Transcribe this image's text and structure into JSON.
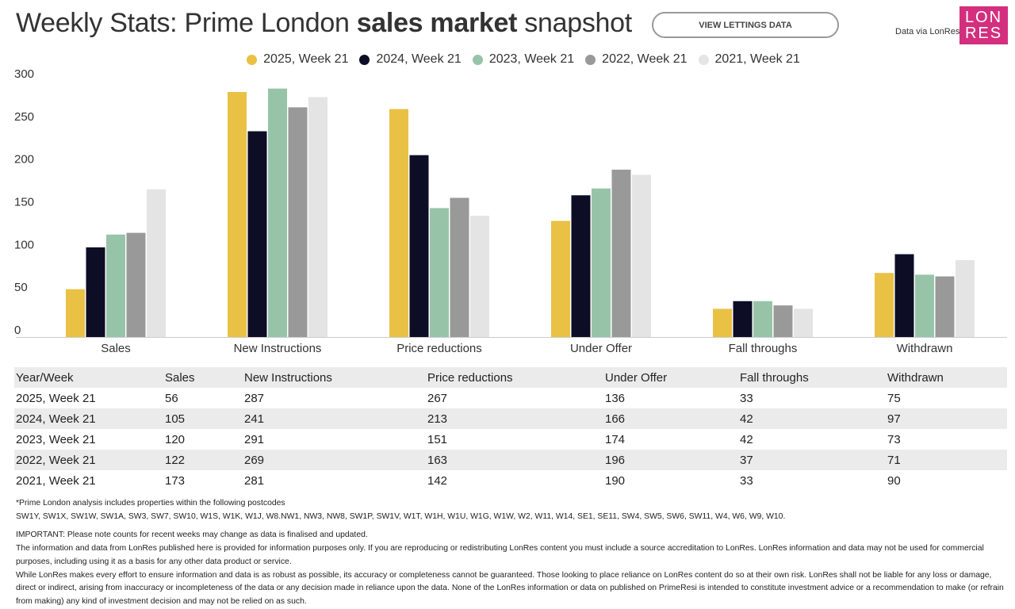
{
  "header": {
    "title_pre": "Weekly Stats: Prime London ",
    "title_bold": "sales market",
    "title_post": " snapshot",
    "button": "VIEW LETTINGS DATA",
    "data_via": "Data via LonRes",
    "logo_top": "LON",
    "logo_bottom": "RES"
  },
  "chart_data": {
    "type": "bar",
    "categories": [
      "Sales",
      "New Instructions",
      "Price reductions",
      "Under Offer",
      "Fall throughs",
      "Withdrawn"
    ],
    "yticks": [
      0,
      50,
      100,
      150,
      200,
      250,
      300
    ],
    "ylim": [
      0,
      300
    ],
    "grid": false,
    "legend_position": "top",
    "series": [
      {
        "name": "2025, Week 21",
        "color": "#e9c144",
        "values": [
          56,
          287,
          267,
          136,
          33,
          75
        ]
      },
      {
        "name": "2024, Week 21",
        "color": "#0d0d26",
        "values": [
          105,
          241,
          213,
          166,
          42,
          97
        ]
      },
      {
        "name": "2023, Week 21",
        "color": "#97c4a8",
        "values": [
          120,
          291,
          151,
          174,
          42,
          73
        ]
      },
      {
        "name": "2022, Week 21",
        "color": "#999999",
        "values": [
          122,
          269,
          163,
          196,
          37,
          71
        ]
      },
      {
        "name": "2021, Week 21",
        "color": "#e4e4e4",
        "values": [
          173,
          281,
          142,
          190,
          33,
          90
        ]
      }
    ]
  },
  "table": {
    "headers": [
      "Year/Week",
      "Sales",
      "New Instructions",
      "Price reductions",
      "Under Offer",
      "Fall throughs",
      "Withdrawn"
    ],
    "rows": [
      [
        "2025, Week 21",
        "56",
        "287",
        "267",
        "136",
        "33",
        "75"
      ],
      [
        "2024, Week 21",
        "105",
        "241",
        "213",
        "166",
        "42",
        "97"
      ],
      [
        "2023, Week 21",
        "120",
        "291",
        "151",
        "174",
        "42",
        "73"
      ],
      [
        "2022, Week 21",
        "122",
        "269",
        "163",
        "196",
        "37",
        "71"
      ],
      [
        "2021, Week 21",
        "173",
        "281",
        "142",
        "190",
        "33",
        "90"
      ]
    ]
  },
  "notes": {
    "postcodes_title": "*Prime London analysis includes properties within the following postcodes",
    "postcodes": "SW1Y, SW1X, SW1W, SW1A, SW3, SW7, SW10, W1S, W1K, W1J, W8.NW1, NW3, NW8, SW1P, SW1V, W1T, W1H, W1U, W1G, W1W, W2, W11, W14, SE1, SE11, SW4, SW5, SW6, SW11, W4, W6, W9, W10.",
    "important": "IMPORTANT: Please note counts for recent weeks may change as data is finalised and updated.",
    "info": "The information and data from LonRes published here is provided for information purposes only. If you are reproducing or redistributing LonRes content you must include a source accreditation to LonRes. LonRes information and data may not be used for commercial purposes, including using it as a basis for any other data product or service.",
    "disclaimer": "While LonRes makes every effort to ensure information and data is as robust as possible, its accuracy or completeness cannot be guaranteed. Those looking to place reliance on LonRes content do so at their own risk. LonRes shall not be liable for any loss or damage, direct or indirect, arising from inaccuracy or incompleteness of the data or any decision made in reliance upon the data. None of the LonRes information or data on published on PrimeResi is intended to constitute investment advice or a recommendation to make (or refrain from making) any kind of investment decision and may not be relied on as such."
  }
}
